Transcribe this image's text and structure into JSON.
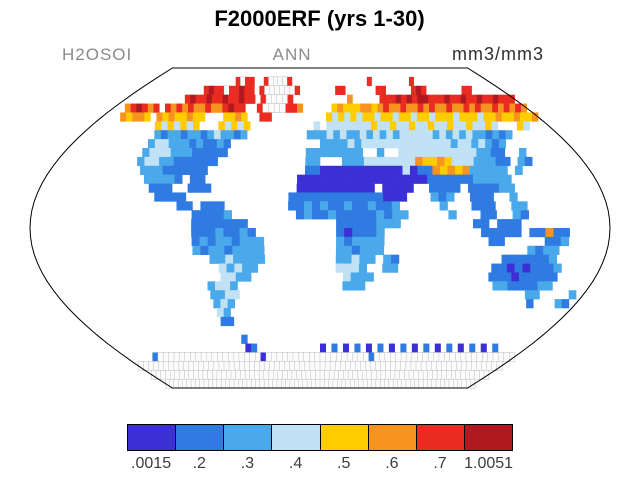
{
  "header": {
    "title": "F2000ERF (yrs 1-30)",
    "variable": "H2OSOI",
    "season": "ANN",
    "units": "mm3/mm3"
  },
  "chart_data": {
    "type": "heatmap",
    "title": "F2000ERF (yrs 1-30)",
    "variable": "H2OSOI",
    "statistic": "ANN",
    "units": "mm3/mm3",
    "projection": "robinson",
    "data_min": 0.0015,
    "data_max": 1.0051,
    "levels": [
      0.2,
      0.3,
      0.4,
      0.5,
      0.6,
      0.7
    ],
    "colorbar": {
      "labels": [
        ".0015",
        ".2",
        ".3",
        ".4",
        ".5",
        ".6",
        ".7",
        "1.0051"
      ],
      "colors": [
        "#3c2fd6",
        "#2f7be1",
        "#4aa9ea",
        "#c0e2f4",
        "#ffcc00",
        "#f7941f",
        "#ea2b22",
        "#b0191f"
      ]
    },
    "grid": {
      "cols": 72,
      "rows": 36,
      "lon_start": -180,
      "lat_start": 90,
      "dlon": 5,
      "dlat": -5,
      "palette": {
        "0": "#fbfbfb",
        "1": "#3c2fd6",
        "2": "#2f7be1",
        "3": "#4aa9ea",
        "4": "#c0e2f4",
        "5": "#ffcc00",
        "6": "#f7941f",
        "7": "#ea2b22",
        "8": "#b0191f"
      },
      "rows_data": [
        [
          "............",
          "............",
          "............",
          "............",
          "............",
          "............"
        ],
        [
          "............",
          "......7077..",
          "700007......",
          "..........7.",
          ".......7....",
          "............"
        ],
        [
          "............",
          ".7877077877.",
          "70000007....",
          "...77......7",
          "7.....787...",
          "....77......"
        ],
        [
          "...........7",
          "877877877877",
          ".700007.....",
          ".....6.....7",
          "778787887778",
          "778778778777"
        ],
        [
          "..678767.767",
          "67667667877.",
          ".70000776...",
          "..5655566567",
          "667667676676",
          "676766767676"
        ],
        [
          "...65665.656",
          "55655...5565",
          "..77........",
          ".54545455455",
          "455455455545",
          "554556556556"
        ],
        [
          "..........54",
          "54545...5454",
          "5..........4",
          ".44444445445",
          "445445445445",
          "4454...54..."
        ],
        [
          "...........3",
          "233233234332",
          "3.........33",
          "343433434343",
          "444443434343",
          "32323......."
        ],
        [
          "...........3",
          "44333232232.",
          "............",
          "333343444444",
          "444444434434",
          "323........."
        ],
        [
          "...........3",
          "44433322222.",
          "..........33",
          "333333..3..4",
          "444444444433",
          "22..3......."
        ],
        [
          "...........3",
          "4433222222..",
          "..........33",
          "...333444444",
          "465565444333",
          "22.32......."
        ],
        [
          "............",
          "333222222...",
          "..........22",
          "111111111114",
          "122656563333",
          "3.3........."
        ],
        [
          "............",
          ".33332.22...",
          ".........111",
          "111111111111",
          "112222223333",
          "3..........."
        ],
        [
          "............",
          "..222..222..",
          ".........111",
          "1111111.1111",
          "..2222.22223",
          "3..........."
        ],
        [
          "............",
          "...2222.....",
          "........2222",
          "22222222111.",
          "..323..222..",
          "3..........."
        ],
        [
          "............",
          "......22.222",
          "........2232",
          "3223223223..",
          "...3...222..",
          "33.........."
        ],
        [
          "............",
          "........2222",
          "3........232",
          "23222223233.",
          "....3...22..",
          "32.........."
        ],
        [
          "............",
          "........2222",
          "222.........",
          "..22222333..",
          ".......22.22",
          "2..........."
        ],
        [
          "............",
          "........2223",
          "2232........",
          "..212223....",
          "........2222",
          "2.22622....."
        ],
        [
          "............",
          "........2323",
          "32333.......",
          "..323333....",
          ".........22.",
          "....223....."
        ],
        [
          "............",
          "........3233",
          "23333.......",
          "..332333....",
          "............",
          "..3233......"
        ],
        [
          "............",
          "..........33",
          "43333.......",
          "..33433.32..",
          "...........2",
          "222223......"
        ],
        [
          "............",
          "...........4",
          "3433........",
          "..4443..33..",
          "..........22",
          "1212223....."
        ],
        [
          "............",
          "...........4",
          "433.........",
          "...4333.....",
          "..........22",
          "2122222....."
        ],
        [
          "............",
          ".........344",
          "3...........",
          "...333......",
          "...........3",
          "3222233....."
        ],
        [
          "............",
          ".........334",
          "4...........",
          "............",
          "............",
          "....33....3."
        ],
        [
          "............",
          ".........343",
          "............",
          "............",
          "............",
          ".....2...32."
        ],
        [
          "............",
          ".........43.",
          "............",
          "............",
          "............",
          "............"
        ],
        [
          "............",
          ".........22.",
          "............",
          "............",
          "............",
          "............"
        ],
        [
          "............",
          "............",
          "............",
          "............",
          "............",
          "............"
        ],
        [
          "............",
          "...........2",
          "............",
          "............",
          "............",
          "............"
        ],
        [
          "............",
          "...........1",
          "2...........",
          "1.2.1.2.1.2.",
          "1.2.1.2.1.2.",
          "1.2.1.2....."
        ],
        [
          ".....2000000",
          "000000000000",
          "010000000000",
          "000000000200",
          "000000000000",
          "000000000000"
        ],
        [
          "000000000000",
          "000000000000",
          "000000000000",
          "000000000000",
          "000000000000",
          "000000000000"
        ],
        [
          "000000000000",
          "000000000000",
          "000000000000",
          "000000000000",
          "000000000000",
          "000000000000"
        ],
        [
          "000000000000",
          "000000000000",
          "000000000000",
          "000000000000",
          "000000000000",
          "000000000000"
        ]
      ]
    }
  }
}
